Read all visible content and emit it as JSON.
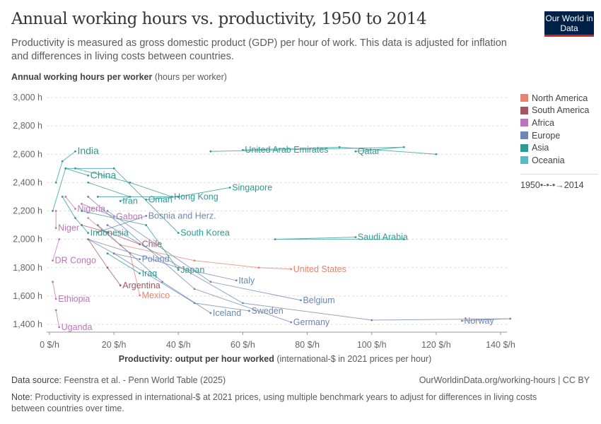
{
  "title": "Annual working hours vs. productivity, 1950 to 2014",
  "subtitle": "Productivity is measured as gross domestic product (GDP) per hour of work. This data is adjusted for inflation and differences in living costs between countries.",
  "logo": "Our World in Data",
  "y_label_bold": "Annual working hours per worker",
  "y_label_unit": " (hours per worker)",
  "footer": {
    "source_label": "Data source:",
    "source": " Feenstra et al. - Penn World Table (2025)",
    "url": "OurWorldinData.org/working-hours | CC BY",
    "note_label": "Note:",
    "note": " Productivity is expressed in international-$ at 2021 prices, using multiple benchmark years to adjust for differences in living costs between countries over time."
  },
  "legend": {
    "items": [
      {
        "label": "North America",
        "color": "#e8836f"
      },
      {
        "label": "South America",
        "color": "#a35660"
      },
      {
        "label": "Africa",
        "color": "#b877b8"
      },
      {
        "label": "Europe",
        "color": "#6e86b3"
      },
      {
        "label": "Asia",
        "color": "#2e9a91"
      },
      {
        "label": "Oceania",
        "color": "#5bb9c6"
      }
    ],
    "time_start": "1950",
    "time_end": "2014"
  },
  "chart_data": {
    "type": "scatter",
    "connected": true,
    "title": "Annual working hours vs. productivity, 1950 to 2014",
    "xlabel_bold": "Productivity: output per hour worked",
    "xlabel_unit": " (international-$ in 2021 prices per hour)",
    "ylabel": "Annual working hours per worker (hours per worker)",
    "xlim": [
      0,
      145
    ],
    "ylim": [
      1350,
      3050
    ],
    "xticks": [
      0,
      20,
      40,
      60,
      80,
      100,
      120,
      140
    ],
    "xtick_labels": [
      "0 $/h",
      "20 $/h",
      "40 $/h",
      "60 $/h",
      "80 $/h",
      "100 $/h",
      "120 $/h",
      "140 $/h"
    ],
    "yticks": [
      1400,
      1600,
      1800,
      2000,
      2200,
      2400,
      2600,
      2800,
      3000
    ],
    "ytick_labels": [
      "1,400 h",
      "1,600 h",
      "1,800 h",
      "2,000 h",
      "2,200 h",
      "2,400 h",
      "2,600 h",
      "2,800 h",
      "3,000 h"
    ],
    "grid": "horizontal dashed",
    "series": [
      {
        "name": "United States",
        "continent": "North America",
        "points": [
          [
            22,
            1960
          ],
          [
            45,
            1850
          ],
          [
            65,
            1800
          ],
          [
            75,
            1790
          ]
        ]
      },
      {
        "name": "Mexico",
        "continent": "North America",
        "points": [
          [
            12,
            2150
          ],
          [
            25,
            1900
          ],
          [
            28,
            1605
          ]
        ]
      },
      {
        "name": "Chile",
        "continent": "South America",
        "points": [
          [
            10,
            2100
          ],
          [
            18,
            2050
          ],
          [
            28,
            1965
          ]
        ]
      },
      {
        "name": "Argentina",
        "continent": "South America",
        "points": [
          [
            12,
            2000
          ],
          [
            18,
            1800
          ],
          [
            22,
            1675
          ]
        ]
      },
      {
        "name": "Nigeria",
        "continent": "Africa",
        "points": [
          [
            5,
            2300
          ],
          [
            8,
            2215
          ]
        ]
      },
      {
        "name": "Gabon",
        "continent": "Africa",
        "points": [
          [
            10,
            2250
          ],
          [
            20,
            2160
          ]
        ]
      },
      {
        "name": "Niger",
        "continent": "Africa",
        "points": [
          [
            2,
            2200
          ],
          [
            2,
            2080
          ]
        ]
      },
      {
        "name": "DR Congo",
        "continent": "Africa",
        "points": [
          [
            3,
            2000
          ],
          [
            1,
            1850
          ]
        ]
      },
      {
        "name": "Ethiopia",
        "continent": "Africa",
        "points": [
          [
            1,
            1700
          ],
          [
            2,
            1580
          ]
        ]
      },
      {
        "name": "Uganda",
        "continent": "Africa",
        "points": [
          [
            2,
            1500
          ],
          [
            3,
            1380
          ]
        ]
      },
      {
        "name": "Poland",
        "continent": "Europe",
        "points": [
          [
            12,
            2000
          ],
          [
            20,
            1900
          ],
          [
            28,
            1860
          ]
        ]
      },
      {
        "name": "Bosnia and Herz.",
        "continent": "Europe",
        "points": [
          [
            15,
            2050
          ],
          [
            30,
            2165
          ]
        ]
      },
      {
        "name": "Italy",
        "continent": "Europe",
        "points": [
          [
            12,
            2000
          ],
          [
            40,
            1800
          ],
          [
            58,
            1710
          ]
        ]
      },
      {
        "name": "Iceland",
        "continent": "Europe",
        "points": [
          [
            15,
            2100
          ],
          [
            35,
            1700
          ],
          [
            50,
            1480
          ]
        ]
      },
      {
        "name": "Sweden",
        "continent": "Europe",
        "points": [
          [
            20,
            1900
          ],
          [
            45,
            1550
          ],
          [
            62,
            1495
          ]
        ]
      },
      {
        "name": "Belgium",
        "continent": "Europe",
        "points": [
          [
            18,
            2200
          ],
          [
            50,
            1700
          ],
          [
            78,
            1570
          ]
        ]
      },
      {
        "name": "Germany",
        "continent": "Europe",
        "points": [
          [
            12,
            2300
          ],
          [
            45,
            1650
          ],
          [
            75,
            1415
          ]
        ]
      },
      {
        "name": "Norway",
        "continent": "Europe",
        "points": [
          [
            18,
            2100
          ],
          [
            60,
            1550
          ],
          [
            100,
            1430
          ],
          [
            143,
            1440
          ],
          [
            128,
            1425
          ]
        ]
      },
      {
        "name": "India",
        "continent": "Asia",
        "points": [
          [
            2,
            2400
          ],
          [
            4,
            2550
          ],
          [
            8,
            2620
          ]
        ]
      },
      {
        "name": "China",
        "continent": "Asia",
        "points": [
          [
            1,
            2200
          ],
          [
            5,
            2500
          ],
          [
            12,
            2450
          ]
        ]
      },
      {
        "name": "Indonesia",
        "continent": "Asia",
        "points": [
          [
            4,
            2300
          ],
          [
            8,
            2150
          ],
          [
            12,
            2045
          ]
        ]
      },
      {
        "name": "Iran",
        "continent": "Asia",
        "points": [
          [
            12,
            2400
          ],
          [
            25,
            2300
          ],
          [
            22,
            2270
          ]
        ]
      },
      {
        "name": "Oman",
        "continent": "Asia",
        "points": [
          [
            40,
            2300
          ],
          [
            30,
            2280
          ]
        ]
      },
      {
        "name": "Iraq",
        "continent": "Asia",
        "points": [
          [
            18,
            1900
          ],
          [
            28,
            1760
          ]
        ]
      },
      {
        "name": "Hong Kong",
        "continent": "Asia",
        "points": [
          [
            8,
            2500
          ],
          [
            25,
            2400
          ],
          [
            38,
            2300
          ]
        ]
      },
      {
        "name": "South Korea",
        "continent": "Asia",
        "points": [
          [
            5,
            2500
          ],
          [
            20,
            2500
          ],
          [
            40,
            2045
          ]
        ]
      },
      {
        "name": "Singapore",
        "continent": "Asia",
        "points": [
          [
            15,
            2300
          ],
          [
            40,
            2300
          ],
          [
            56,
            2365
          ]
        ]
      },
      {
        "name": "Japan",
        "continent": "Asia",
        "points": [
          [
            10,
            2200
          ],
          [
            30,
            2100
          ],
          [
            40,
            1785
          ]
        ]
      },
      {
        "name": "United Arab Emirates",
        "continent": "Asia",
        "points": [
          [
            120,
            2600
          ],
          [
            90,
            2650
          ],
          [
            60,
            2630
          ]
        ]
      },
      {
        "name": "Qatar",
        "continent": "Asia",
        "points": [
          [
            50,
            2620
          ],
          [
            110,
            2650
          ],
          [
            95,
            2620
          ]
        ]
      },
      {
        "name": "Saudi Arabia",
        "continent": "Asia",
        "points": [
          [
            110,
            2000
          ],
          [
            70,
            2000
          ],
          [
            95,
            2015
          ]
        ]
      }
    ]
  }
}
